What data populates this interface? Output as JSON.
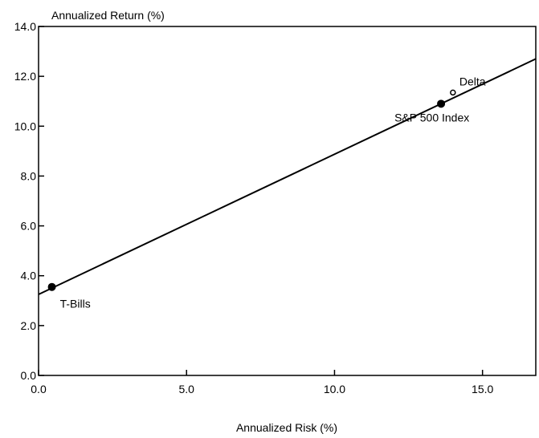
{
  "chart_data": {
    "type": "scatter",
    "title": "",
    "ylabel": "Annualized Return (%)",
    "xlabel": "Annualized Risk (%)",
    "xlim": [
      0,
      16.8
    ],
    "ylim": [
      0,
      14
    ],
    "x_ticks": [
      0,
      5,
      10,
      15
    ],
    "x_tick_labels": [
      "0.0",
      "5.0",
      "10.0",
      "15.0"
    ],
    "y_ticks": [
      0,
      2,
      4,
      6,
      8,
      10,
      12,
      14
    ],
    "y_tick_labels": [
      "0.0",
      "2.0",
      "4.0",
      "6.0",
      "8.0",
      "10.0",
      "12.0",
      "14.0"
    ],
    "grid": false,
    "legend": "none",
    "line": {
      "x": [
        0,
        16.8
      ],
      "y": [
        3.25,
        12.7
      ]
    },
    "points": [
      {
        "label": "T-Bills",
        "x": 0.45,
        "y": 3.55,
        "marker": "filled"
      },
      {
        "label": "S&P 500 Index",
        "x": 13.6,
        "y": 10.9,
        "marker": "filled"
      },
      {
        "label": "Delta",
        "x": 14.0,
        "y": 11.35,
        "marker": "open"
      }
    ]
  }
}
